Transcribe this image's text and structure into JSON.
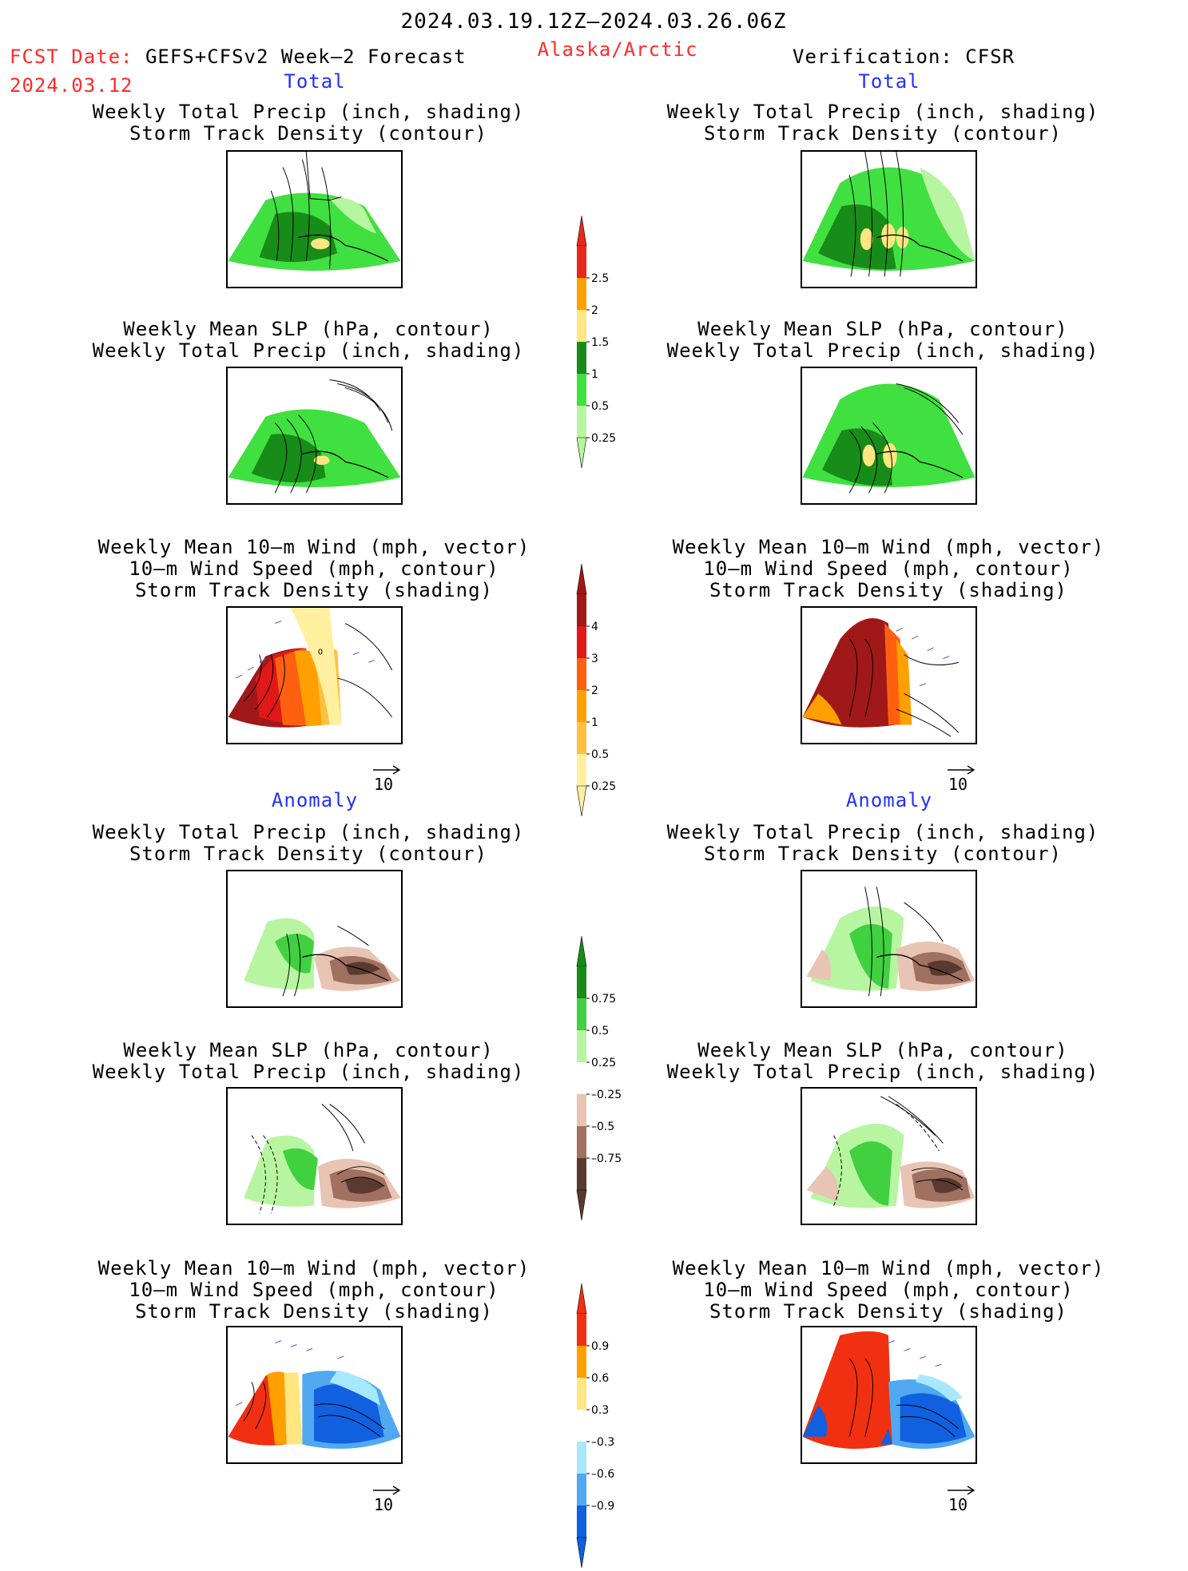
{
  "header": {
    "date_range": "2024.03.19.12Z–2024.03.26.06Z",
    "fcst_label": "FCST Date:",
    "model": "GEFS+CFSv2 Week–2 Forecast",
    "fcst_date": "2024.03.12",
    "region": "Alaska/Arctic",
    "verification": "Verification: CFSR"
  },
  "sections": {
    "total": "Total",
    "anomaly": "Anomaly"
  },
  "panel_titles": {
    "precip_storm": [
      "Weekly Total Precip (inch, shading)",
      "Storm Track Density (contour)"
    ],
    "slp_precip": [
      "Weekly Mean SLP (hPa, contour)",
      "Weekly Total Precip (inch, shading)"
    ],
    "wind_storm": [
      "Weekly Mean 10–m Wind (mph, vector)",
      "10–m Wind Speed (mph, contour)",
      "Storm Track Density (shading)"
    ]
  },
  "vector_ref": "10",
  "colorbars": {
    "precip_total": {
      "labels": [
        "2.5",
        "2",
        "1.5",
        "1",
        "0.5",
        "0.25"
      ],
      "colors": [
        "#e8281c",
        "#ffa000",
        "#ffe680",
        "#188c18",
        "#40e040",
        "#b8f5a0"
      ]
    },
    "storm_total": {
      "labels": [
        "4",
        "3",
        "2",
        "1",
        "0.5",
        "0.25"
      ],
      "colors": [
        "#a01818",
        "#e01818",
        "#ff6010",
        "#ffa000",
        "#ffc040",
        "#fff0a0"
      ]
    },
    "precip_anom": {
      "labels": [
        "0.75",
        "0.5",
        "0.25",
        "–0.25",
        "–0.5",
        "–0.75"
      ],
      "colors": [
        "#188c18",
        "#40d040",
        "#b8f5a0",
        "#ffffff",
        "#e8c4b4",
        "#a07060",
        "#5a3a30"
      ]
    },
    "storm_anom": {
      "labels": [
        "0.9",
        "0.6",
        "0.3",
        "–0.3",
        "–0.6",
        "–0.9"
      ],
      "colors": [
        "#f03010",
        "#ffa000",
        "#ffe680",
        "#ffffff",
        "#a8e8ff",
        "#50a8f0",
        "#1060e0"
      ]
    }
  }
}
